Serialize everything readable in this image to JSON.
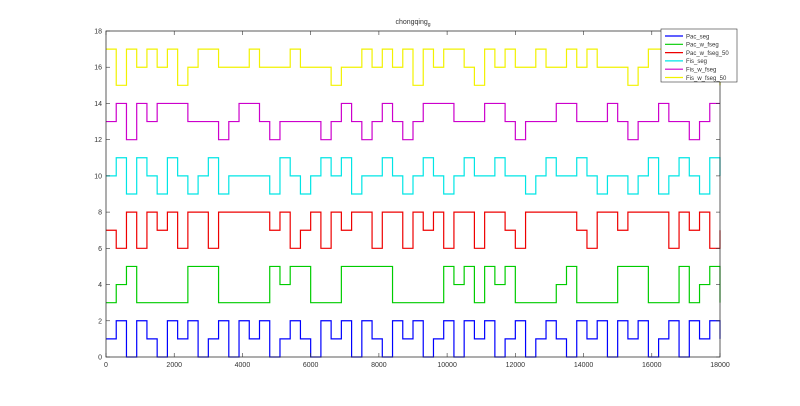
{
  "chart_data": {
    "type": "line",
    "title": "chongqing",
    "title_subscript": "g",
    "xlabel": "",
    "ylabel": "",
    "xlim": [
      0,
      18000
    ],
    "ylim": [
      0,
      18
    ],
    "xticks": [
      "0",
      "2000",
      "4000",
      "6000",
      "8000",
      "10000",
      "12000",
      "14000",
      "16000",
      "18000"
    ],
    "yticks": [
      "0",
      "2",
      "4",
      "6",
      "8",
      "10",
      "12",
      "14",
      "16",
      "18"
    ],
    "grid": false,
    "legend_position": "top-right",
    "step": true,
    "x": [
      0,
      300,
      600,
      900,
      1200,
      1500,
      1800,
      2100,
      2400,
      2700,
      3000,
      3300,
      3600,
      3900,
      4200,
      4500,
      4800,
      5100,
      5400,
      5700,
      6000,
      6300,
      6600,
      6900,
      7200,
      7500,
      7800,
      8100,
      8400,
      8700,
      9000,
      9300,
      9600,
      9900,
      10200,
      10500,
      10800,
      11100,
      11400,
      11700,
      12000,
      12300,
      12600,
      12900,
      13200,
      13500,
      13800,
      14100,
      14400,
      14700,
      15000,
      15300,
      15600,
      15900,
      16200,
      16500,
      16800,
      17100,
      17400,
      17700,
      18000
    ],
    "series": [
      {
        "name": "Pac_seg",
        "color": "#0000ff",
        "values": [
          1,
          2,
          0,
          2,
          1,
          0,
          2,
          1,
          2,
          0,
          1,
          2,
          0,
          2,
          1,
          2,
          0,
          1,
          2,
          1,
          0,
          2,
          1,
          2,
          0,
          2,
          1,
          0,
          2,
          1,
          2,
          0,
          1,
          2,
          0,
          2,
          1,
          2,
          0,
          1,
          2,
          0,
          1,
          2,
          1,
          0,
          2,
          1,
          2,
          0,
          2,
          1,
          2,
          0,
          1,
          2,
          0,
          2,
          1,
          2,
          1
        ]
      },
      {
        "name": "Pac_w_fseg",
        "color": "#00cc00",
        "values": [
          3,
          4,
          5,
          3,
          3,
          3,
          3,
          3,
          5,
          5,
          5,
          3,
          3,
          3,
          3,
          3,
          5,
          4,
          5,
          5,
          3,
          3,
          3,
          5,
          5,
          5,
          5,
          5,
          3,
          3,
          3,
          3,
          3,
          5,
          4,
          5,
          3,
          5,
          4,
          5,
          3,
          3,
          3,
          3,
          4,
          5,
          3,
          3,
          3,
          3,
          5,
          5,
          5,
          3,
          3,
          3,
          5,
          3,
          4,
          5,
          3
        ]
      },
      {
        "name": "Pac_w_fseg_50",
        "color": "#ee0000",
        "values": [
          7,
          6,
          8,
          6,
          8,
          7,
          8,
          6,
          8,
          8,
          6,
          8,
          8,
          8,
          8,
          8,
          7,
          8,
          6,
          7,
          8,
          6,
          8,
          7,
          8,
          8,
          6,
          8,
          8,
          6,
          8,
          7,
          8,
          6,
          8,
          8,
          6,
          8,
          8,
          7,
          6,
          8,
          8,
          8,
          8,
          8,
          7,
          6,
          8,
          8,
          7,
          8,
          8,
          8,
          8,
          6,
          8,
          7,
          8,
          6,
          7
        ]
      },
      {
        "name": "Fis_seg",
        "color": "#00e5e5",
        "values": [
          10,
          11,
          9,
          11,
          10,
          9,
          11,
          10,
          9,
          10,
          11,
          9,
          10,
          10,
          10,
          10,
          9,
          11,
          10,
          9,
          10,
          11,
          10,
          11,
          9,
          10,
          10,
          11,
          10,
          9,
          10,
          11,
          10,
          9,
          10,
          11,
          10,
          10,
          11,
          10,
          10,
          9,
          10,
          11,
          10,
          10,
          11,
          10,
          9,
          10,
          10,
          9,
          10,
          11,
          9,
          10,
          11,
          10,
          9,
          11,
          10
        ]
      },
      {
        "name": "Fis_w_fseg",
        "color": "#cc00cc",
        "values": [
          13,
          14,
          12,
          14,
          13,
          14,
          14,
          14,
          13,
          13,
          13,
          12,
          13,
          14,
          14,
          13,
          12,
          13,
          13,
          13,
          13,
          12,
          13,
          14,
          13,
          12,
          13,
          14,
          13,
          12,
          13,
          14,
          14,
          14,
          13,
          13,
          13,
          14,
          14,
          13,
          12,
          13,
          13,
          13,
          14,
          14,
          13,
          13,
          13,
          14,
          13,
          12,
          13,
          13,
          14,
          13,
          13,
          12,
          13,
          14,
          14
        ]
      },
      {
        "name": "Fis_w_fseg_50",
        "color": "#f2f200",
        "values": [
          17,
          15,
          17,
          16,
          17,
          16,
          17,
          15,
          16,
          17,
          17,
          16,
          16,
          16,
          17,
          16,
          16,
          16,
          17,
          16,
          16,
          16,
          15,
          16,
          16,
          17,
          16,
          17,
          16,
          17,
          15,
          17,
          16,
          17,
          17,
          16,
          15,
          17,
          16,
          17,
          16,
          16,
          17,
          16,
          16,
          17,
          16,
          17,
          16,
          16,
          16,
          15,
          16,
          17,
          17,
          16,
          16,
          16,
          17,
          16,
          15
        ]
      }
    ]
  }
}
